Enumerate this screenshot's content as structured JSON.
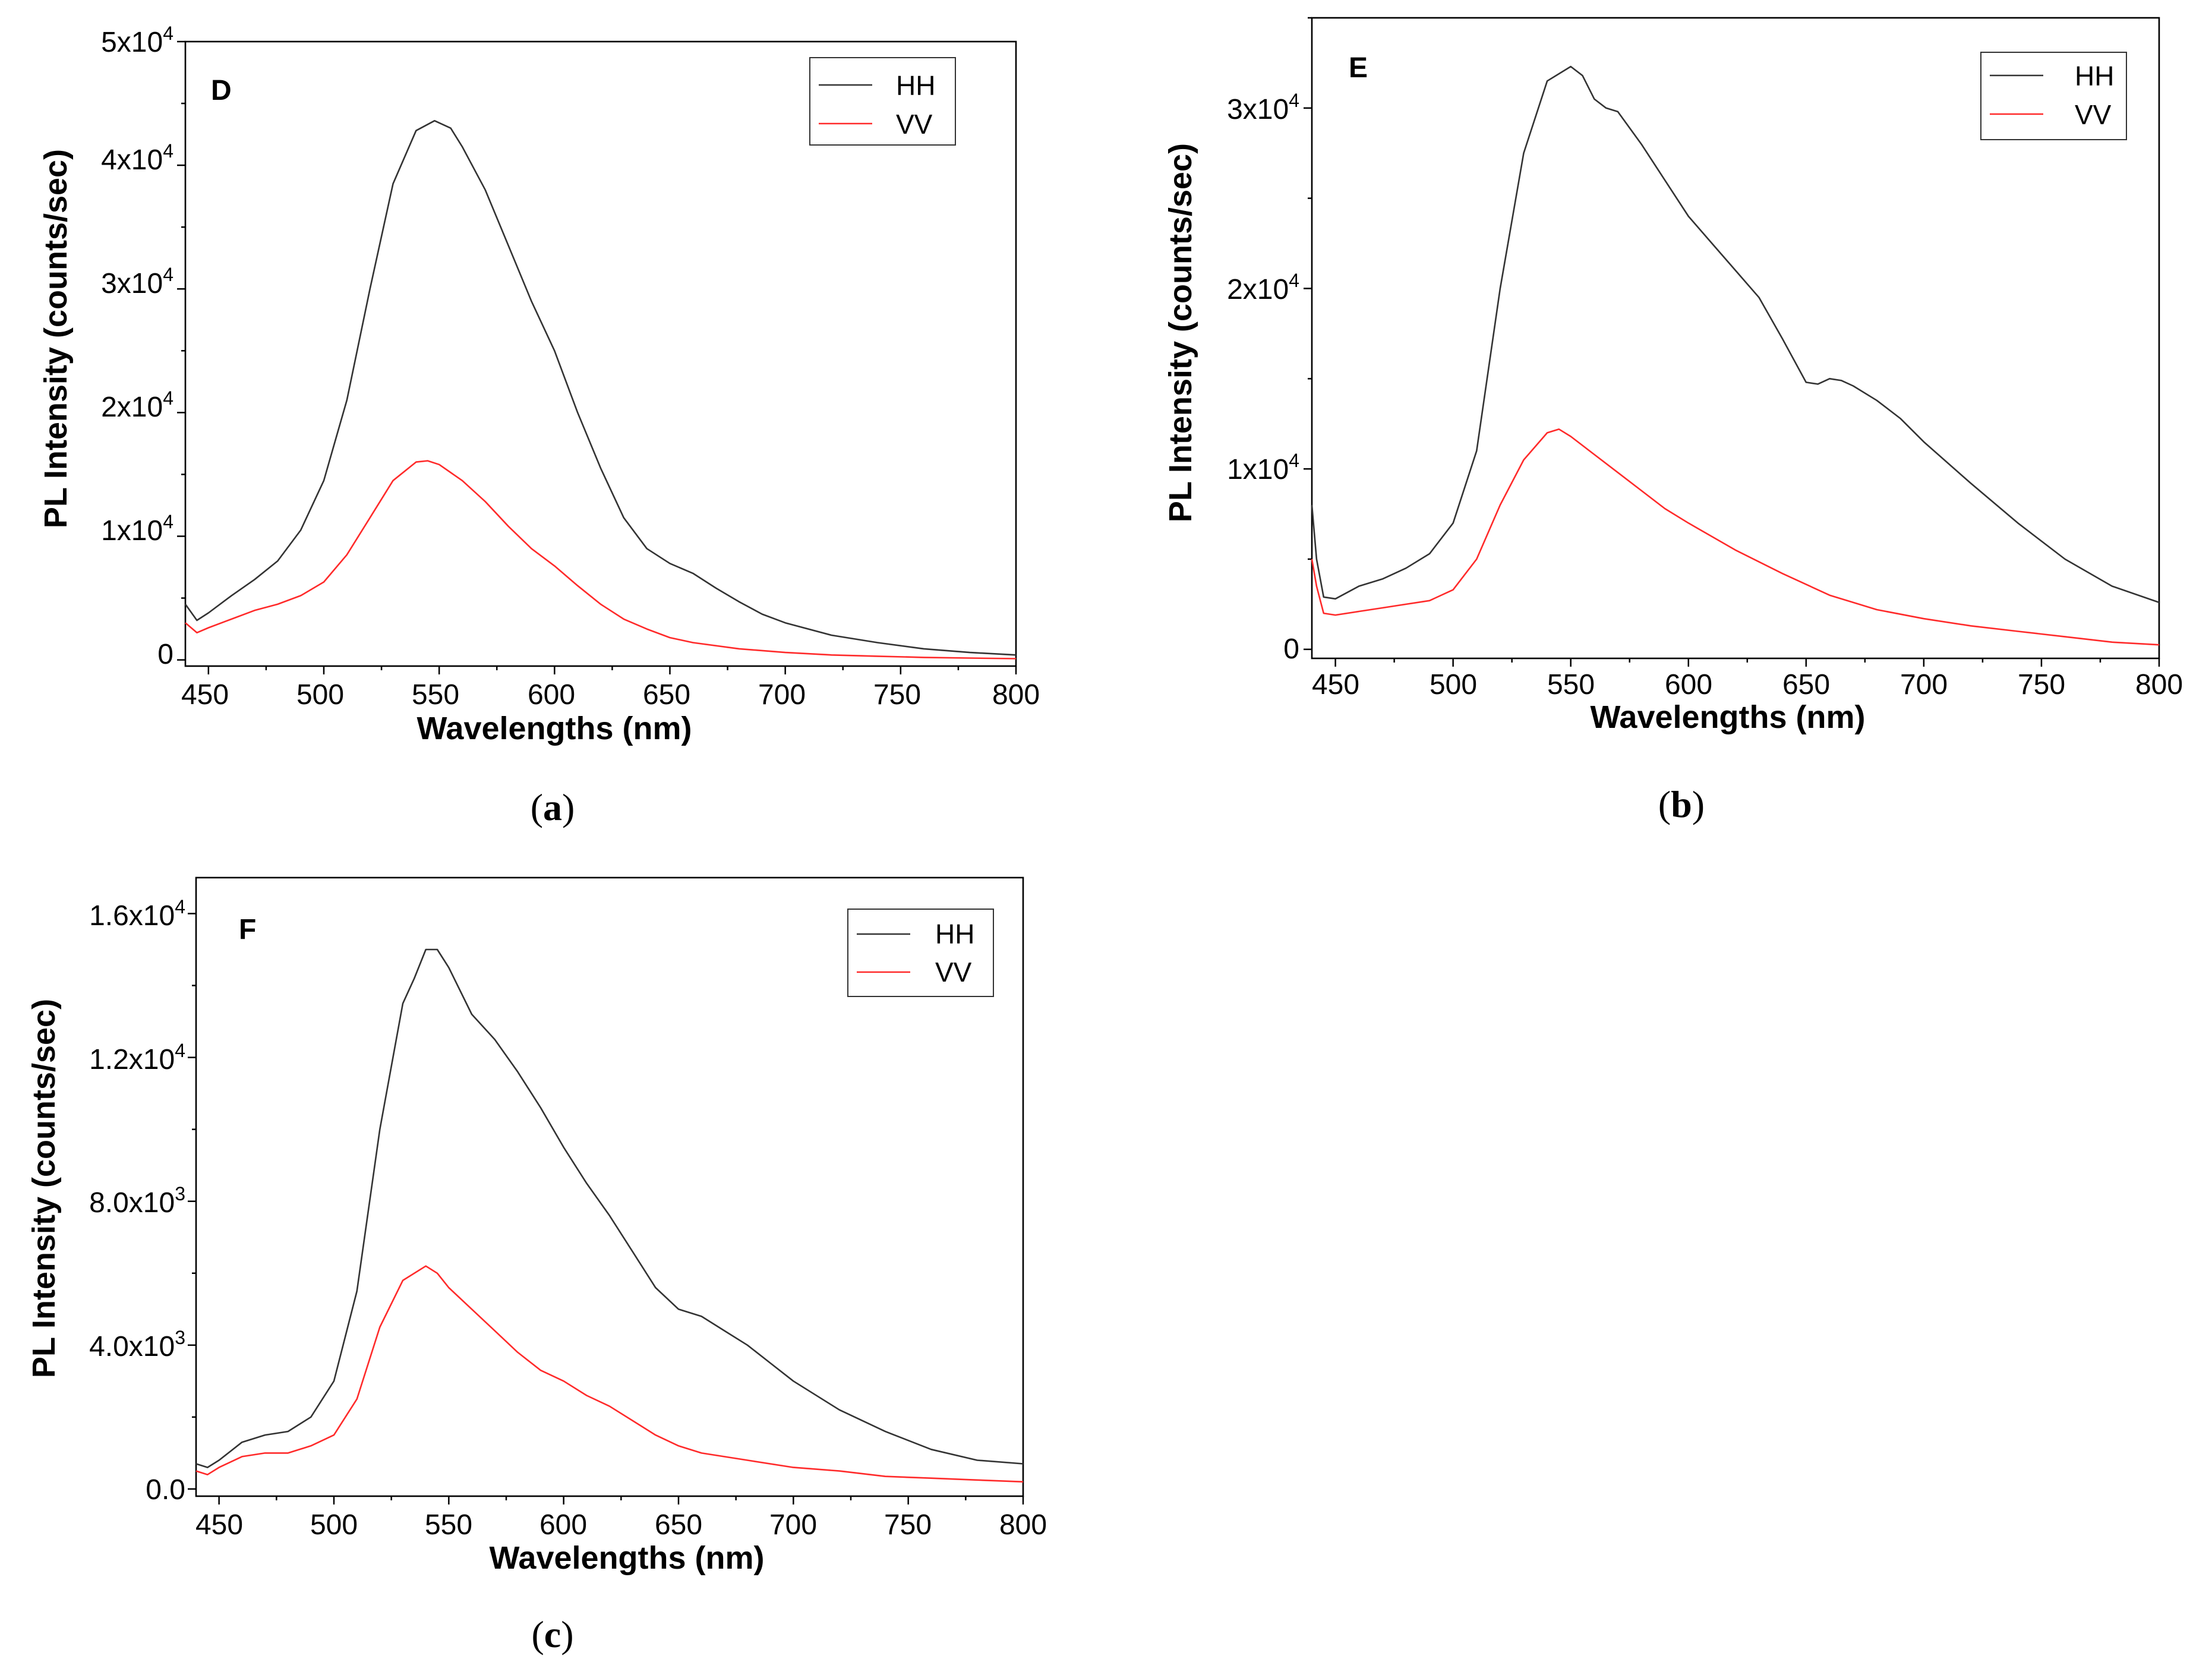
{
  "figure": {
    "captions": [
      {
        "prefix": "(",
        "letter": "a",
        "suffix": ")"
      },
      {
        "prefix": "(",
        "letter": "b",
        "suffix": ")"
      },
      {
        "prefix": "(",
        "letter": "c",
        "suffix": ")"
      }
    ]
  },
  "colors": {
    "HH": "#333333",
    "VV": "#ff2a2a",
    "axis": "#000000"
  },
  "chart_data": [
    {
      "type": "line",
      "panel_label": "D",
      "title": "",
      "xlabel": "Wavelengths (nm)",
      "ylabel": "PL Intensity (counts/sec)",
      "xlim": [
        440,
        800
      ],
      "ylim": [
        -500,
        50000
      ],
      "xticks": [
        450,
        500,
        550,
        600,
        650,
        700,
        750,
        800
      ],
      "xtick_labels": [
        "450",
        "500",
        "550",
        "600",
        "650",
        "700",
        "750",
        "800"
      ],
      "yticks": [
        0,
        10000,
        20000,
        30000,
        40000,
        50000
      ],
      "ytick_labels": [
        {
          "base": "0",
          "exp": ""
        },
        {
          "base": "1x10",
          "exp": "4"
        },
        {
          "base": "2x10",
          "exp": "4"
        },
        {
          "base": "3x10",
          "exp": "4"
        },
        {
          "base": "4x10",
          "exp": "4"
        },
        {
          "base": "5x10",
          "exp": "4"
        }
      ],
      "legend": {
        "position": "top-right",
        "entries": [
          "HH",
          "VV"
        ]
      },
      "series": [
        {
          "name": "HH",
          "x": [
            440,
            445,
            450,
            460,
            470,
            480,
            490,
            500,
            510,
            520,
            530,
            540,
            548,
            555,
            560,
            570,
            580,
            590,
            600,
            610,
            620,
            630,
            640,
            650,
            660,
            670,
            680,
            690,
            700,
            720,
            740,
            760,
            780,
            800
          ],
          "y": [
            4500,
            3200,
            3800,
            5200,
            6500,
            8000,
            10500,
            14500,
            21000,
            30000,
            38500,
            42800,
            43600,
            43000,
            41500,
            38000,
            33500,
            29000,
            25000,
            20000,
            15500,
            11500,
            9000,
            7800,
            7000,
            5800,
            4700,
            3700,
            3000,
            2000,
            1400,
            900,
            600,
            400
          ]
        },
        {
          "name": "VV",
          "x": [
            440,
            445,
            450,
            460,
            470,
            480,
            490,
            500,
            510,
            520,
            530,
            540,
            545,
            550,
            560,
            570,
            580,
            590,
            600,
            610,
            620,
            630,
            640,
            650,
            660,
            680,
            700,
            720,
            740,
            760,
            780,
            800
          ],
          "y": [
            3000,
            2200,
            2600,
            3300,
            4000,
            4500,
            5200,
            6300,
            8500,
            11500,
            14500,
            16000,
            16100,
            15800,
            14500,
            12800,
            10800,
            9000,
            7600,
            6000,
            4500,
            3300,
            2500,
            1800,
            1400,
            900,
            600,
            400,
            300,
            200,
            150,
            100
          ]
        }
      ]
    },
    {
      "type": "line",
      "panel_label": "E",
      "title": "",
      "xlabel": "Wavelengths (nm)",
      "ylabel": "PL Intensity (counts/sec)",
      "xlim": [
        440,
        800
      ],
      "ylim": [
        -500,
        35000
      ],
      "xticks": [
        450,
        500,
        550,
        600,
        650,
        700,
        750,
        800
      ],
      "xtick_labels": [
        "450",
        "500",
        "550",
        "600",
        "650",
        "700",
        "750",
        "800"
      ],
      "yticks": [
        0,
        10000,
        20000,
        30000
      ],
      "ytick_labels": [
        {
          "base": "0",
          "exp": ""
        },
        {
          "base": "1x10",
          "exp": "4"
        },
        {
          "base": "2x10",
          "exp": "4"
        },
        {
          "base": "3x10",
          "exp": "4"
        }
      ],
      "legend": {
        "position": "top-right",
        "entries": [
          "HH",
          "VV"
        ]
      },
      "series": [
        {
          "name": "HH",
          "x": [
            440,
            442,
            445,
            450,
            460,
            470,
            480,
            490,
            500,
            510,
            520,
            530,
            540,
            550,
            555,
            560,
            565,
            570,
            580,
            590,
            600,
            610,
            620,
            630,
            640,
            650,
            655,
            660,
            665,
            670,
            680,
            690,
            700,
            720,
            740,
            760,
            780,
            800
          ],
          "y": [
            8000,
            5000,
            2900,
            2800,
            3500,
            3900,
            4500,
            5300,
            7000,
            11000,
            20000,
            27500,
            31500,
            32300,
            31800,
            30500,
            30000,
            29800,
            28000,
            26000,
            24000,
            22500,
            21000,
            19500,
            17200,
            14800,
            14700,
            15000,
            14900,
            14600,
            13800,
            12800,
            11500,
            9200,
            7000,
            5000,
            3500,
            2600
          ]
        },
        {
          "name": "VV",
          "x": [
            440,
            442,
            445,
            450,
            460,
            470,
            480,
            490,
            500,
            510,
            520,
            530,
            540,
            545,
            550,
            560,
            570,
            580,
            590,
            600,
            620,
            640,
            660,
            680,
            700,
            720,
            740,
            760,
            780,
            800
          ],
          "y": [
            5000,
            3500,
            2000,
            1900,
            2100,
            2300,
            2500,
            2700,
            3300,
            5000,
            8000,
            10500,
            12000,
            12200,
            11800,
            10800,
            9800,
            8800,
            7800,
            7000,
            5500,
            4200,
            3000,
            2200,
            1700,
            1300,
            1000,
            700,
            400,
            250
          ]
        }
      ]
    },
    {
      "type": "line",
      "panel_label": "F",
      "title": "",
      "xlabel": "Wavelengths (nm)",
      "ylabel": "PL Intensity (counts/sec)",
      "xlim": [
        440,
        800
      ],
      "ylim": [
        -200,
        17000
      ],
      "xticks": [
        450,
        500,
        550,
        600,
        650,
        700,
        750,
        800
      ],
      "xtick_labels": [
        "450",
        "500",
        "550",
        "600",
        "650",
        "700",
        "750",
        "800"
      ],
      "yticks": [
        0,
        4000,
        8000,
        12000,
        16000
      ],
      "ytick_labels": [
        {
          "base": "0.0",
          "exp": ""
        },
        {
          "base": "4.0x10",
          "exp": "3"
        },
        {
          "base": "8.0x10",
          "exp": "3"
        },
        {
          "base": "1.2x10",
          "exp": "4"
        },
        {
          "base": "1.6x10",
          "exp": "4"
        }
      ],
      "legend": {
        "position": "top-right",
        "entries": [
          "HH",
          "VV"
        ]
      },
      "series": [
        {
          "name": "HH",
          "x": [
            440,
            445,
            450,
            460,
            470,
            480,
            490,
            500,
            510,
            520,
            530,
            535,
            540,
            545,
            550,
            560,
            570,
            580,
            590,
            600,
            610,
            620,
            630,
            640,
            650,
            660,
            670,
            680,
            690,
            700,
            720,
            740,
            760,
            780,
            800
          ],
          "y": [
            700,
            600,
            800,
            1300,
            1500,
            1600,
            2000,
            3000,
            5500,
            10000,
            13500,
            14200,
            15000,
            15000,
            14500,
            13200,
            12500,
            11600,
            10600,
            9500,
            8500,
            7600,
            6600,
            5600,
            5000,
            4800,
            4400,
            4000,
            3500,
            3000,
            2200,
            1600,
            1100,
            800,
            700
          ]
        },
        {
          "name": "VV",
          "x": [
            440,
            445,
            450,
            460,
            470,
            480,
            490,
            500,
            510,
            520,
            530,
            540,
            545,
            550,
            560,
            570,
            580,
            590,
            600,
            610,
            620,
            630,
            640,
            650,
            660,
            680,
            700,
            720,
            740,
            760,
            780,
            800
          ],
          "y": [
            500,
            400,
            600,
            900,
            1000,
            1000,
            1200,
            1500,
            2500,
            4500,
            5800,
            6200,
            6000,
            5600,
            5000,
            4400,
            3800,
            3300,
            3000,
            2600,
            2300,
            1900,
            1500,
            1200,
            1000,
            800,
            600,
            500,
            350,
            300,
            250,
            200
          ]
        }
      ]
    }
  ]
}
